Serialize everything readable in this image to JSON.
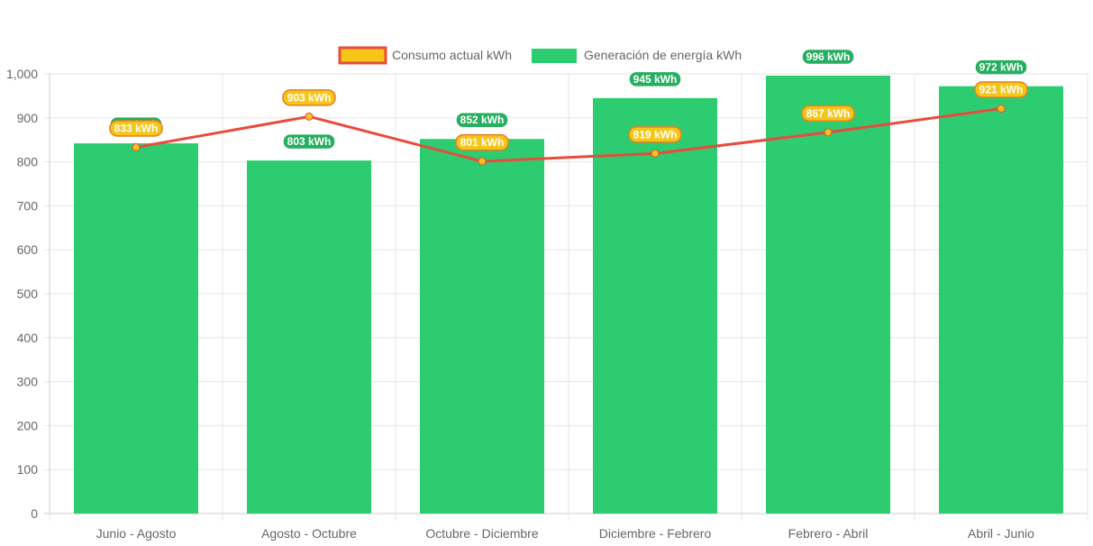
{
  "chart_data": {
    "type": "bar",
    "categories": [
      "Junio - Agosto",
      "Agosto - Octubre",
      "Octubre - Diciembre",
      "Diciembre - Febrero",
      "Febrero - Abril",
      "Abril - Junio"
    ],
    "series": [
      {
        "name": "Consumo actual kWh",
        "type": "line",
        "values": [
          833,
          903,
          801,
          819,
          867,
          921
        ],
        "color": "#e74c3c",
        "point_color": "#f5c518"
      },
      {
        "name": "Generación de energía kWh",
        "type": "bar",
        "values": [
          842,
          803,
          852,
          945,
          996,
          972
        ],
        "color": "#2ecc71"
      }
    ],
    "data_labels": {
      "consumo": [
        "833 kWh",
        "903 kWh",
        "801 kWh",
        "819 kWh",
        "867 kWh",
        "921 kWh"
      ],
      "generacion": [
        "842 kWh",
        "803 kWh",
        "852 kWh",
        "945 kWh",
        "996 kWh",
        "972 kWh"
      ]
    },
    "ylim": [
      0,
      1000
    ],
    "yticks": [
      0,
      100,
      200,
      300,
      400,
      500,
      600,
      700,
      800,
      900,
      1000
    ],
    "ytick_labels": [
      "0",
      "100",
      "200",
      "300",
      "400",
      "500",
      "600",
      "700",
      "800",
      "900",
      "1,000"
    ],
    "legend_position": "top",
    "grid": true
  }
}
